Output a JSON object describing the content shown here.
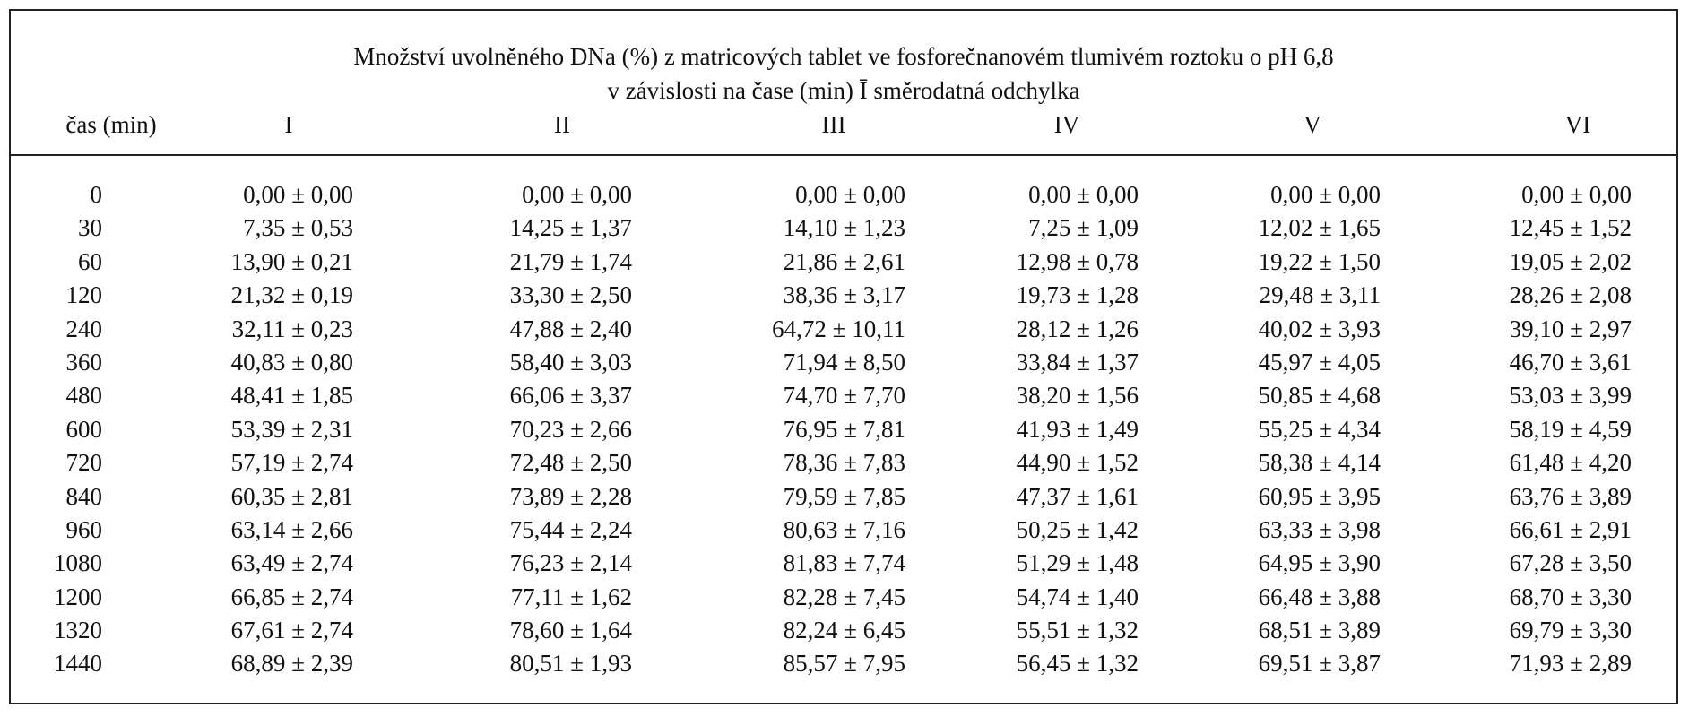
{
  "caption": {
    "line1": "Množství uvolněného DNa (%) z matricových tablet ve fosforečnanovém tlumivém roztoku o pH 6,8",
    "line2": "v závislosti na čase (min) Ī směrodatná odchylka"
  },
  "headers": {
    "time": "čas (min)",
    "c1": "I",
    "c2": "II",
    "c3": "III",
    "c4": "IV",
    "c5": "V",
    "c6": "VI"
  },
  "rows": [
    {
      "t": "0",
      "v": [
        "0,00 ± 0,00",
        "0,00 ± 0,00",
        "0,00 ± 0,00",
        "0,00 ± 0,00",
        "0,00 ± 0,00",
        "0,00 ± 0,00"
      ]
    },
    {
      "t": "30",
      "v": [
        "7,35 ± 0,53",
        "14,25 ± 1,37",
        "14,10 ± 1,23",
        "7,25 ± 1,09",
        "12,02 ± 1,65",
        "12,45 ± 1,52"
      ]
    },
    {
      "t": "60",
      "v": [
        "13,90 ± 0,21",
        "21,79 ± 1,74",
        "21,86 ± 2,61",
        "12,98 ± 0,78",
        "19,22 ± 1,50",
        "19,05 ± 2,02"
      ]
    },
    {
      "t": "120",
      "v": [
        "21,32 ± 0,19",
        "33,30 ± 2,50",
        "38,36 ± 3,17",
        "19,73 ± 1,28",
        "29,48 ± 3,11",
        "28,26 ± 2,08"
      ]
    },
    {
      "t": "240",
      "v": [
        "32,11 ± 0,23",
        "47,88 ± 2,40",
        "64,72 ± 10,11",
        "28,12 ± 1,26",
        "40,02 ± 3,93",
        "39,10 ± 2,97"
      ]
    },
    {
      "t": "360",
      "v": [
        "40,83 ± 0,80",
        "58,40 ± 3,03",
        "71,94 ± 8,50",
        "33,84 ± 1,37",
        "45,97 ± 4,05",
        "46,70 ± 3,61"
      ]
    },
    {
      "t": "480",
      "v": [
        "48,41 ± 1,85",
        "66,06 ± 3,37",
        "74,70 ± 7,70",
        "38,20 ± 1,56",
        "50,85 ± 4,68",
        "53,03 ± 3,99"
      ]
    },
    {
      "t": "600",
      "v": [
        "53,39 ± 2,31",
        "70,23 ± 2,66",
        "76,95 ± 7,81",
        "41,93 ± 1,49",
        "55,25 ± 4,34",
        "58,19 ± 4,59"
      ]
    },
    {
      "t": "720",
      "v": [
        "57,19 ± 2,74",
        "72,48 ± 2,50",
        "78,36 ± 7,83",
        "44,90 ± 1,52",
        "58,38 ± 4,14",
        "61,48 ± 4,20"
      ]
    },
    {
      "t": "840",
      "v": [
        "60,35 ± 2,81",
        "73,89 ± 2,28",
        "79,59 ± 7,85",
        "47,37 ± 1,61",
        "60,95 ± 3,95",
        "63,76 ± 3,89"
      ]
    },
    {
      "t": "960",
      "v": [
        "63,14 ± 2,66",
        "75,44 ± 2,24",
        "80,63 ± 7,16",
        "50,25 ± 1,42",
        "63,33 ± 3,98",
        "66,61 ± 2,91"
      ]
    },
    {
      "t": "1080",
      "v": [
        "63,49 ± 2,74",
        "76,23 ± 2,14",
        "81,83 ± 7,74",
        "51,29 ± 1,48",
        "64,95 ± 3,90",
        "67,28 ± 3,50"
      ]
    },
    {
      "t": "1200",
      "v": [
        "66,85 ± 2,74",
        "77,11 ± 1,62",
        "82,28 ± 7,45",
        "54,74 ± 1,40",
        "66,48 ± 3,88",
        "68,70 ± 3,30"
      ]
    },
    {
      "t": "1320",
      "v": [
        "67,61 ± 2,74",
        "78,60 ± 1,64",
        "82,24 ± 6,45",
        "55,51 ± 1,32",
        "68,51 ± 3,89",
        "69,79 ± 3,30"
      ]
    },
    {
      "t": "1440",
      "v": [
        "68,89 ± 2,39",
        "80,51 ± 1,93",
        "85,57 ± 7,95",
        "56,45 ± 1,32",
        "69,51 ± 3,87",
        "71,93 ± 2,89"
      ]
    }
  ]
}
